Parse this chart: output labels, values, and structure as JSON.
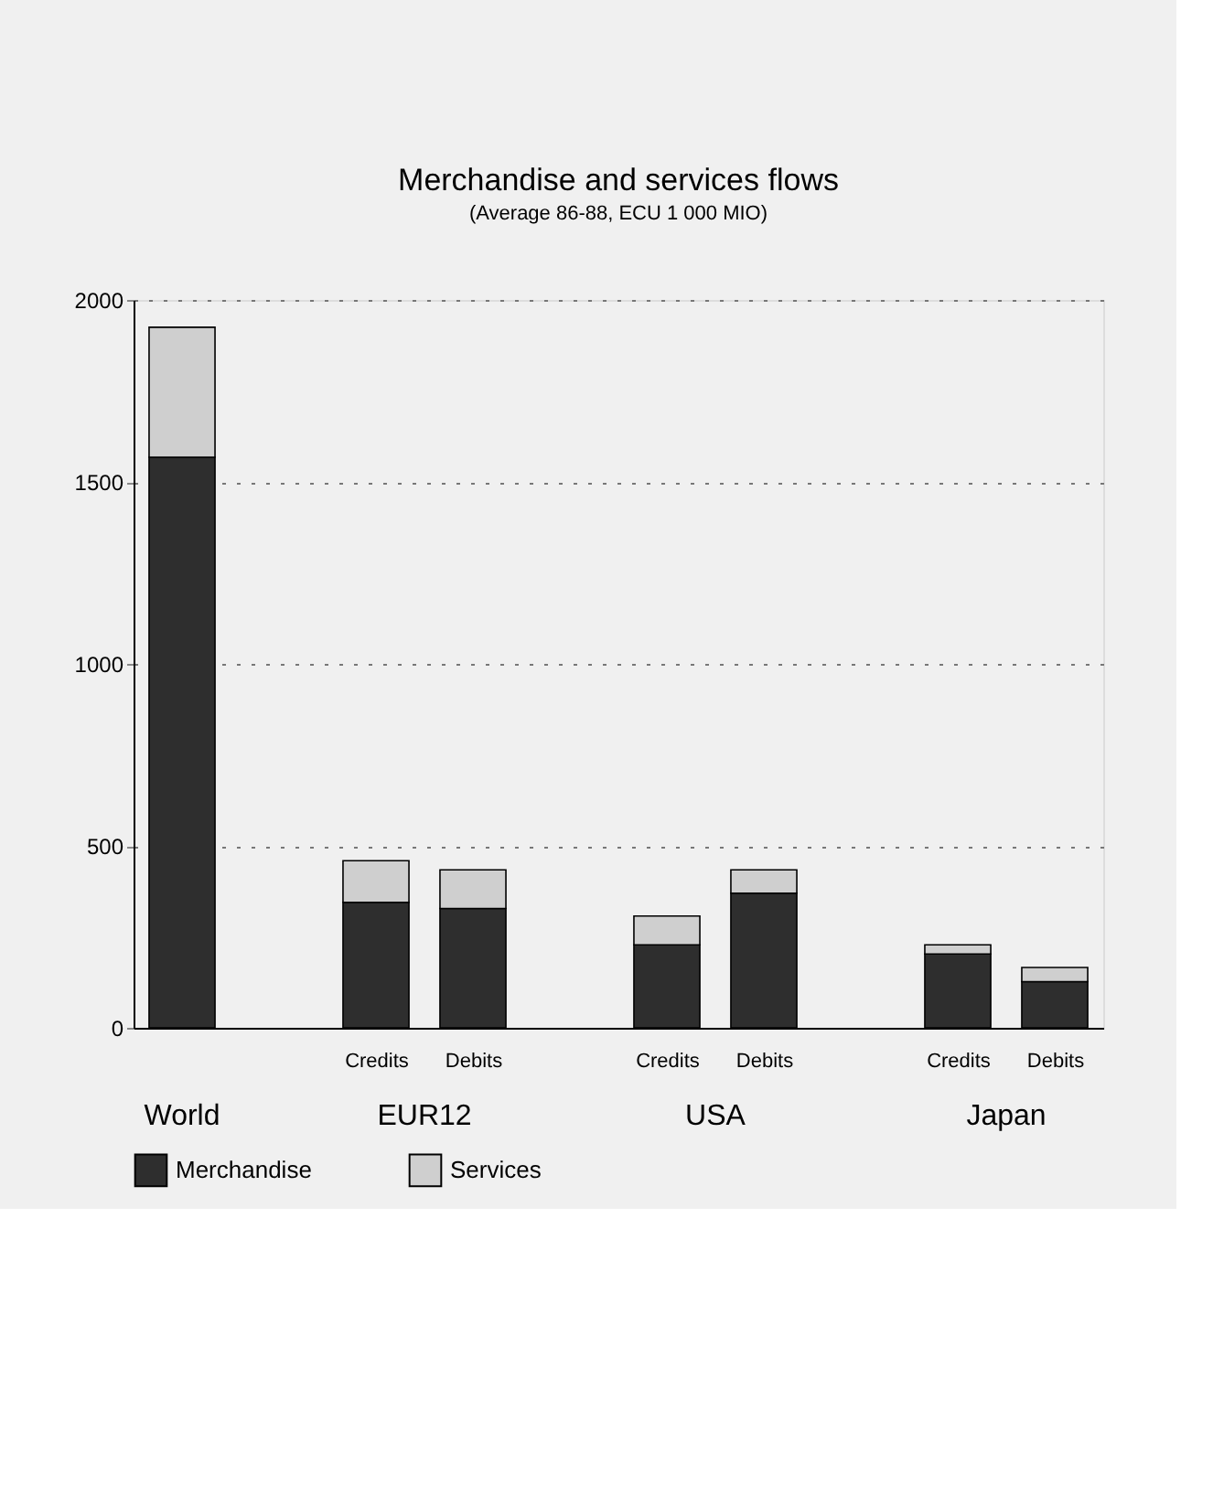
{
  "chart_data": {
    "type": "bar",
    "title": "Merchandise and services flows",
    "subtitle": "(Average 86-88, ECU 1 000 MIO)",
    "categories": [
      null,
      "Credits",
      "Debits",
      "Credits",
      "Debits",
      "Credits",
      "Debits"
    ],
    "annotations": [
      "World",
      "EUR12",
      "USA",
      "Japan"
    ],
    "stacked": true,
    "series": [
      {
        "name": "Merchandise",
        "color": "#2e2e2e",
        "values": [
          1568,
          345,
          328,
          228,
          370,
          203,
          127
        ]
      },
      {
        "name": "Services",
        "color": "#cfcfcf",
        "values": [
          357,
          114,
          106,
          79,
          64,
          25,
          39
        ]
      }
    ],
    "ylim": [
      0,
      2000
    ],
    "yticks": [
      0,
      500,
      1000,
      1500,
      2000
    ],
    "grid": "y",
    "legend": "bottom"
  }
}
